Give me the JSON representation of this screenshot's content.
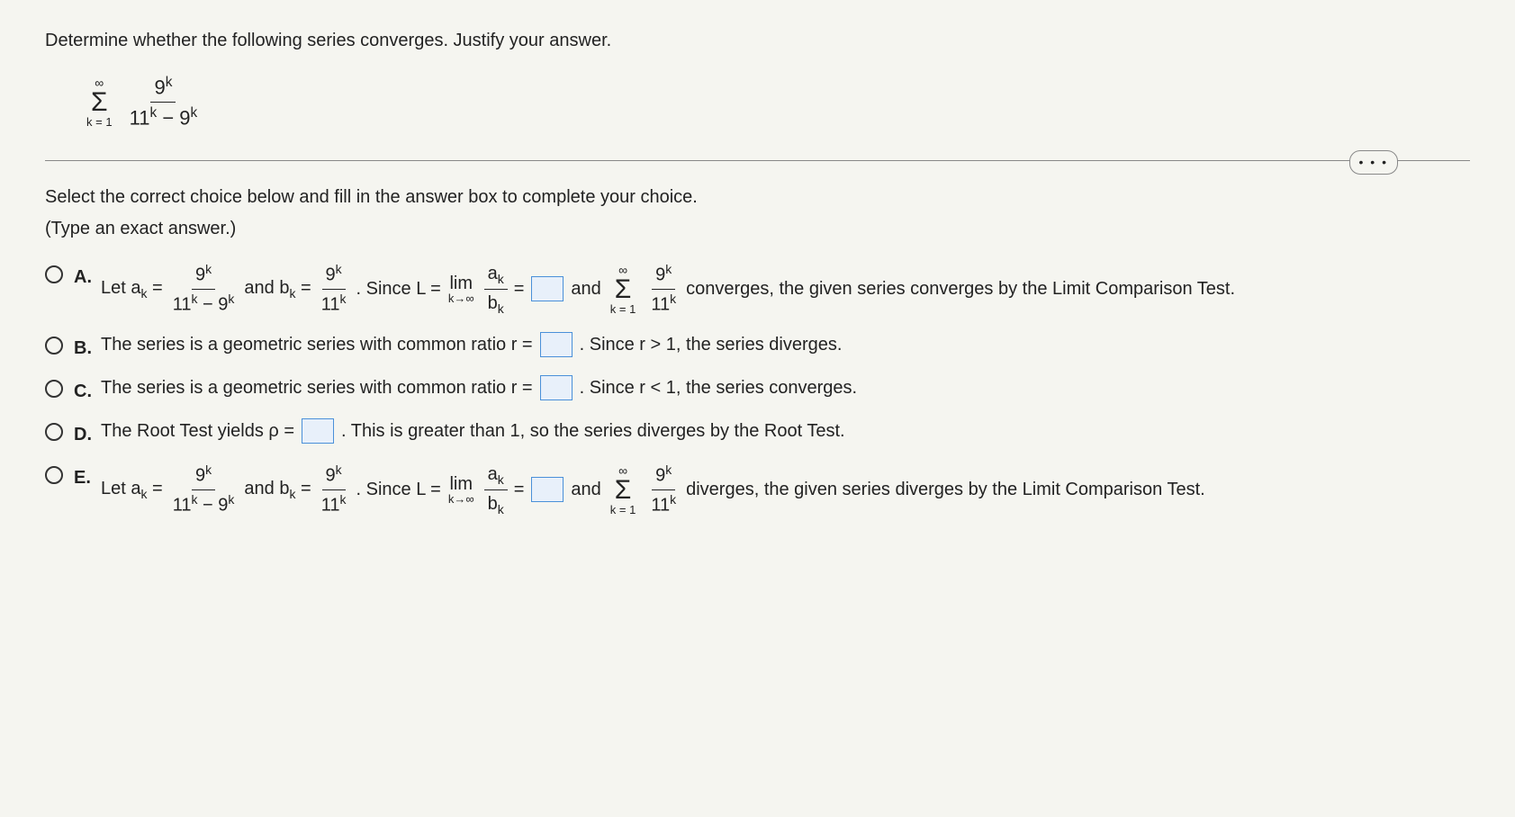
{
  "question": {
    "prompt": "Determine whether the following series converges. Justify your answer.",
    "series": {
      "upper": "∞",
      "lower": "k = 1",
      "numerator": "9",
      "num_exp": "k",
      "denominator_a": "11",
      "den_a_exp": "k",
      "denominator_b": "9",
      "den_b_exp": "k"
    }
  },
  "ellipsis": "• • •",
  "instruction": "Select the correct choice below and fill in the answer box to complete your choice.",
  "sub_instruction": "(Type an exact answer.)",
  "choices": {
    "A": {
      "label": "A.",
      "let": "Let  a",
      "sub_k": "k",
      "eq": " = ",
      "ak_num": "9",
      "ak_num_exp": "k",
      "ak_den_a": "11",
      "ak_den_a_exp": "k",
      "ak_den_minus": " − 9",
      "ak_den_b_exp": "k",
      "and_bk": " and b",
      "bk_num": "9",
      "bk_num_exp": "k",
      "bk_den": "11",
      "bk_den_exp": "k",
      "since": ". Since L =  ",
      "lim": "lim",
      "lim_sub": "k→∞",
      "ratio_num": "a",
      "ratio_num_sub": "k",
      "ratio_den": "b",
      "ratio_den_sub": "k",
      "eq2": " = ",
      "and2": " and  ",
      "sum_upper": "∞",
      "sum_lower": "k = 1",
      "sum_num": "9",
      "sum_num_exp": "k",
      "sum_den": "11",
      "sum_den_exp": "k",
      "tail": " converges, the given series converges by the Limit Comparison Test."
    },
    "B": {
      "label": "B.",
      "text1": "The series is a geometric series with common ratio r = ",
      "text2": ". Since r > 1, the series diverges."
    },
    "C": {
      "label": "C.",
      "text1": "The series is a geometric series with common ratio r = ",
      "text2": ". Since r < 1, the series converges."
    },
    "D": {
      "label": "D.",
      "text1": "The Root Test yields ρ = ",
      "text2": ". This is greater than 1, so the series diverges by the Root Test."
    },
    "E": {
      "label": "E.",
      "let": "Let  a",
      "sub_k": "k",
      "eq": " = ",
      "ak_num": "9",
      "ak_num_exp": "k",
      "ak_den_a": "11",
      "ak_den_a_exp": "k",
      "ak_den_minus": " − 9",
      "ak_den_b_exp": "k",
      "and_bk": " and b",
      "bk_num": "9",
      "bk_num_exp": "k",
      "bk_den": "11",
      "bk_den_exp": "k",
      "since": ". Since L =  ",
      "lim": "lim",
      "lim_sub": "k→∞",
      "ratio_num": "a",
      "ratio_num_sub": "k",
      "ratio_den": "b",
      "ratio_den_sub": "k",
      "eq2": " = ",
      "and2": " and  ",
      "sum_upper": "∞",
      "sum_lower": "k = 1",
      "sum_num": "9",
      "sum_num_exp": "k",
      "sum_den": "11",
      "sum_den_exp": "k",
      "tail": " diverges, the given series diverges by the Limit Comparison Test."
    }
  },
  "style": {
    "background_color": "#f5f5f0",
    "text_color": "#222222",
    "answer_box_border": "#4a90d9",
    "answer_box_fill": "#e8f0fa",
    "font_family": "Arial",
    "base_fontsize": 20
  }
}
